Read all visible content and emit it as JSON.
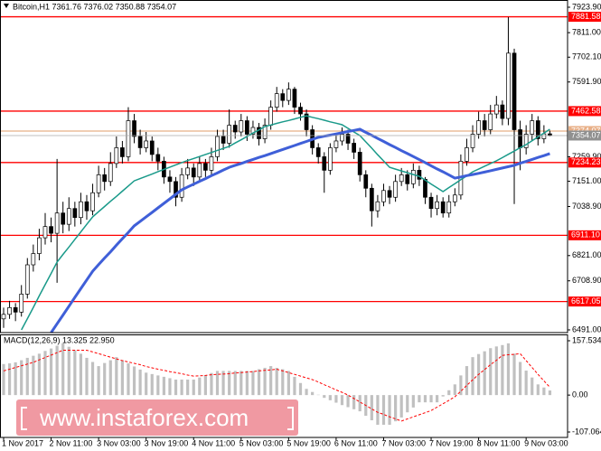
{
  "chart_data": {
    "type": "candlestick",
    "title": "Bitcoin,H1 7361.76 7376.02 7350.88 7354.07",
    "categories": [
      "1 Nov 2017",
      null,
      null,
      null,
      null,
      null,
      null,
      null,
      "2 Nov 11:00",
      null,
      null,
      null,
      null,
      null,
      null,
      null,
      "3 Nov 03:00",
      null,
      null,
      null,
      null,
      null,
      null,
      null,
      "3 Nov 19:00",
      null,
      null,
      null,
      null,
      null,
      null,
      null,
      "4 Nov 11:00",
      null,
      null,
      null,
      null,
      null,
      null,
      null,
      "5 Nov 03:00",
      null,
      null,
      null,
      null,
      null,
      null,
      null,
      "5 Nov 19:00",
      null,
      null,
      null,
      null,
      null,
      null,
      null,
      "6 Nov 11:00",
      null,
      null,
      null,
      null,
      null,
      null,
      null,
      "7 Nov 03:00",
      null,
      null,
      null,
      null,
      null,
      null,
      null,
      "7 Nov 19:00",
      null,
      null,
      null,
      null,
      null,
      null,
      null,
      "8 Nov 11:00",
      null,
      null,
      null,
      null,
      null,
      null,
      null,
      "9 Nov 03:00",
      null,
      null,
      null,
      null
    ],
    "open": [
      6540,
      6560,
      6590,
      6570,
      6650,
      6780,
      6830,
      6900,
      6950,
      6920,
      7010,
      6960,
      7030,
      6990,
      7060,
      7020,
      7100,
      7180,
      7150,
      7230,
      7300,
      7260,
      7420,
      7350,
      7300,
      7330,
      7270,
      7240,
      7170,
      7150,
      7080,
      7180,
      7210,
      7170,
      7230,
      7200,
      7260,
      7350,
      7320,
      7400,
      7370,
      7420,
      7360,
      7390,
      7340,
      7400,
      7480,
      7540,
      7510,
      7560,
      7480,
      7450,
      7380,
      7300,
      7260,
      7200,
      7300,
      7330,
      7360,
      7320,
      7280,
      7180,
      7120,
      7020,
      7060,
      7110,
      7080,
      7150,
      7180,
      7140,
      7200,
      7160,
      7080,
      7030,
      7060,
      7010,
      7060,
      7090,
      7240,
      7300,
      7360,
      7420,
      7380,
      7450,
      7490,
      7430,
      7720,
      7380,
      7300,
      7360,
      7420,
      7340,
      7361.76
    ],
    "high": [
      6590,
      6620,
      6610,
      6690,
      6810,
      6870,
      6940,
      7010,
      6990,
      7250,
      7060,
      7080,
      7060,
      7100,
      7090,
      7140,
      7220,
      7210,
      7280,
      7350,
      7330,
      7480,
      7450,
      7380,
      7370,
      7350,
      7300,
      7260,
      7200,
      7170,
      7210,
      7250,
      7230,
      7260,
      7250,
      7300,
      7380,
      7380,
      7470,
      7420,
      7450,
      7440,
      7420,
      7410,
      7430,
      7510,
      7570,
      7560,
      7590,
      7570,
      7500,
      7470,
      7400,
      7320,
      7280,
      7320,
      7360,
      7390,
      7380,
      7340,
      7300,
      7200,
      7140,
      7090,
      7140,
      7130,
      7180,
      7210,
      7200,
      7230,
      7220,
      7170,
      7100,
      7090,
      7080,
      7090,
      7120,
      7270,
      7340,
      7400,
      7460,
      7450,
      7490,
      7530,
      7510,
      7880,
      7740,
      7420,
      7400,
      7450,
      7440,
      7400,
      7376.02
    ],
    "low": [
      6500,
      6540,
      6530,
      6550,
      6630,
      6750,
      6800,
      6870,
      6880,
      6700,
      6920,
      6930,
      6950,
      6960,
      6980,
      7000,
      7080,
      7110,
      7130,
      7210,
      7230,
      7240,
      7320,
      7270,
      7280,
      7240,
      7200,
      7140,
      7100,
      7040,
      7060,
      7160,
      7130,
      7150,
      7170,
      7180,
      7240,
      7290,
      7300,
      7340,
      7350,
      7330,
      7340,
      7310,
      7320,
      7380,
      7460,
      7480,
      7490,
      7450,
      7420,
      7350,
      7270,
      7230,
      7100,
      7180,
      7280,
      7310,
      7290,
      7250,
      7150,
      7080,
      6950,
      6990,
      7040,
      7050,
      7060,
      7130,
      7110,
      7120,
      7130,
      7050,
      6990,
      7000,
      6990,
      6990,
      7040,
      7070,
      7220,
      7280,
      7340,
      7350,
      7360,
      7430,
      7400,
      7400,
      7050,
      7200,
      7270,
      7330,
      7310,
      7320,
      7350.88
    ],
    "close": [
      6560,
      6590,
      6570,
      6650,
      6780,
      6830,
      6900,
      6950,
      6920,
      7010,
      6960,
      7030,
      6990,
      7060,
      7020,
      7100,
      7180,
      7150,
      7230,
      7300,
      7260,
      7420,
      7350,
      7300,
      7330,
      7270,
      7240,
      7170,
      7150,
      7080,
      7180,
      7210,
      7170,
      7230,
      7200,
      7260,
      7350,
      7320,
      7400,
      7370,
      7420,
      7360,
      7390,
      7340,
      7400,
      7480,
      7540,
      7510,
      7560,
      7480,
      7450,
      7380,
      7300,
      7260,
      7200,
      7300,
      7330,
      7360,
      7320,
      7280,
      7180,
      7120,
      7020,
      7060,
      7110,
      7080,
      7150,
      7180,
      7140,
      7200,
      7160,
      7080,
      7030,
      7060,
      7010,
      7060,
      7090,
      7240,
      7300,
      7360,
      7420,
      7380,
      7450,
      7490,
      7430,
      7720,
      7380,
      7300,
      7360,
      7420,
      7340,
      7361.76,
      7354.07
    ],
    "overlays": [
      {
        "color": "#1a9a8a",
        "values": [
          null,
          null,
          null,
          6491,
          6541,
          6591,
          6642,
          6692,
          6742,
          6792,
          6826,
          6859,
          6893,
          6926,
          6960,
          6993,
          7016,
          7039,
          7062,
          7084,
          7107,
          7130,
          7153,
          7163,
          7173,
          7183,
          7194,
          7204,
          7214,
          7224,
          7234,
          7243,
          7252,
          7261,
          7270,
          7279,
          7288,
          7297,
          7306,
          7321,
          7335,
          7350,
          7365,
          7379,
          7394,
          7401,
          7408,
          7415,
          7421,
          7428,
          7435,
          7442,
          7435,
          7429,
          7422,
          7415,
          7409,
          7402,
          7386,
          7370,
          7354,
          7326,
          7298,
          7269,
          7241,
          7213,
          7205,
          7197,
          7189,
          7181,
          7173,
          7156,
          7139,
          7122,
          7105,
          7123,
          7140,
          7158,
          7175,
          7193,
          7205,
          7218,
          7230,
          7242,
          7256,
          7271,
          7285,
          7300,
          7314,
          7331,
          7348,
          7365,
          7382
        ]
      },
      {
        "color": "#3f5fd8",
        "values": [
          null,
          null,
          null,
          null,
          null,
          null,
          null,
          null,
          6479,
          6518,
          6557,
          6596,
          6635,
          6674,
          6713,
          6752,
          6781,
          6810,
          6838,
          6867,
          6896,
          6924,
          6953,
          6973,
          6993,
          7013,
          7033,
          7053,
          7073,
          7093,
          7113,
          7126,
          7138,
          7151,
          7163,
          7176,
          7188,
          7201,
          7213,
          7222,
          7230,
          7239,
          7248,
          7257,
          7265,
          7274,
          7283,
          7292,
          7301,
          7310,
          7319,
          7328,
          7337,
          7346,
          7351,
          7356,
          7361,
          7367,
          7372,
          7377,
          7382,
          7368,
          7355,
          7341,
          7328,
          7314,
          7301,
          7287,
          7274,
          7261,
          7247,
          7234,
          7220,
          7206,
          7193,
          7179,
          7165,
          7170,
          7176,
          7181,
          7186,
          7192,
          7198,
          7204,
          7210,
          7216,
          7222,
          7231,
          7239,
          7248,
          7257,
          7265,
          7274
        ]
      }
    ],
    "ylim": [
      6479,
      7956
    ],
    "yticks": [
      {
        "value": 7923.9,
        "label": "7923.90"
      },
      {
        "value": 7811,
        "label": "7811.00"
      },
      {
        "value": 7702.1,
        "label": "7702.10"
      },
      {
        "value": 7591.9,
        "label": "7591.90"
      },
      {
        "value": 7259.9,
        "label": "7259.90"
      },
      {
        "value": 7151,
        "label": "7151.00"
      },
      {
        "value": 7038.9,
        "label": "7038.90"
      },
      {
        "value": 6821,
        "label": "6821.00"
      },
      {
        "value": 6708.9,
        "label": "6708.90"
      },
      {
        "value": 6491,
        "label": "6491.00"
      }
    ],
    "levels": [
      {
        "value": 7881.58,
        "color": "#ff0000"
      },
      {
        "value": 7462.58,
        "color": "#ff0000"
      },
      {
        "value": 7374.07,
        "color": "#e8b088"
      },
      {
        "value": 7234.23,
        "color": "#ff0000"
      },
      {
        "value": 6911.1,
        "label": "6911.10",
        "color": "#ff0000"
      },
      {
        "value": 6617.05,
        "color": "#ff0000"
      }
    ],
    "macd": {
      "title": "MACD(12,26,9) 13.325 22.950",
      "ylim": [
        -122.8,
        175.9
      ],
      "yticks": [
        157.534,
        {
          "value": 0,
          "label": "0.00"
        },
        -107.064
      ],
      "histogram_color": "#c0c0c0",
      "histogram": [
        90,
        92,
        95,
        101,
        108,
        114,
        120,
        128,
        135,
        143,
        150,
        140,
        130,
        120,
        108,
        96,
        84,
        93,
        101,
        110,
        101,
        92,
        83,
        74,
        65,
        61,
        57,
        53,
        49,
        45,
        45,
        45,
        45,
        51,
        58,
        64,
        70,
        70,
        70,
        70,
        70,
        70,
        70,
        75,
        79,
        84,
        79,
        75,
        70,
        53,
        35,
        18,
        9,
        1,
        -8,
        -15,
        -22,
        -29,
        -35,
        -41,
        -47,
        -60,
        -73,
        -86,
        -86,
        -86,
        -76,
        -65,
        -50,
        -36,
        -21,
        -21,
        -21,
        -21,
        -4,
        14,
        31,
        57,
        84,
        110,
        119,
        127,
        136,
        141,
        145,
        150,
        120,
        96,
        71,
        51,
        31,
        22,
        13.325
      ],
      "signal_color": "#ff0000",
      "signal": [
        70,
        75,
        80,
        85,
        90,
        95,
        102,
        109,
        116,
        123,
        130,
        130,
        130,
        130,
        130,
        125,
        120,
        115,
        110,
        105,
        100,
        96,
        92,
        88,
        83,
        79,
        75,
        72,
        68,
        65,
        62,
        58,
        55,
        56,
        57,
        59,
        60,
        61,
        62,
        64,
        65,
        67,
        68,
        70,
        72,
        73,
        75,
        70,
        65,
        60,
        55,
        50,
        45,
        38,
        30,
        23,
        15,
        8,
        0,
        -10,
        -20,
        -30,
        -40,
        -50,
        -56,
        -63,
        -69,
        -75,
        -69,
        -63,
        -57,
        -51,
        -45,
        -35,
        -25,
        -15,
        -5,
        11,
        28,
        44,
        60,
        74,
        88,
        101,
        115,
        117,
        118,
        120,
        100,
        80,
        60,
        41,
        22.95
      ]
    },
    "watermark": "www.instaforex.com"
  }
}
